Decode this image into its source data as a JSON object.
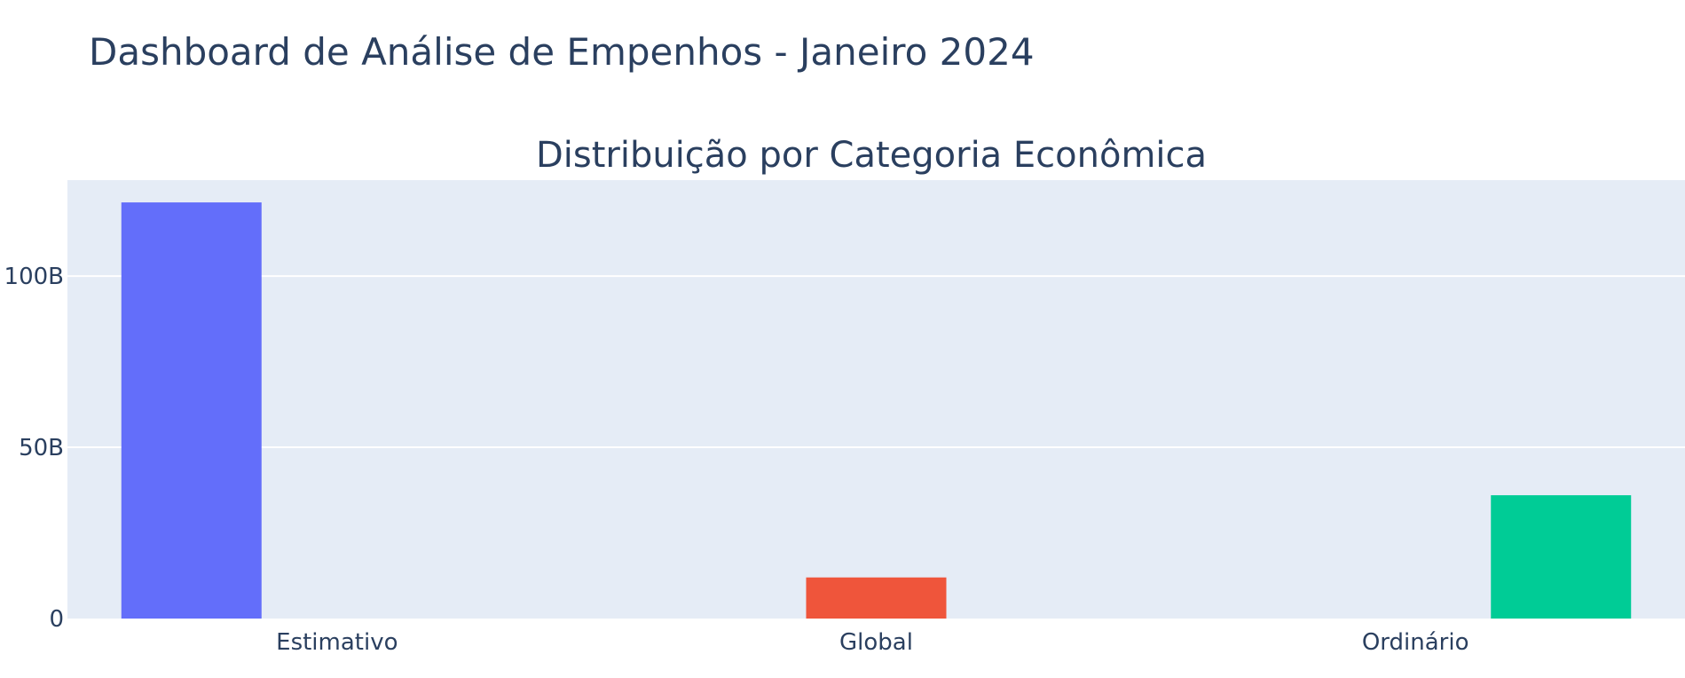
{
  "dashboard": {
    "title": "Dashboard de Análise de Empenhos - Janeiro 2024"
  },
  "chart_data": {
    "type": "bar",
    "title": "Distribuição por Categoria Econômica",
    "xlabel": "",
    "ylabel": "",
    "categories": [
      "Estimativo",
      "Global",
      "Ordinário"
    ],
    "values": [
      121500000000,
      12000000000,
      36000000000
    ],
    "colors": [
      "#636efa",
      "#ef553b",
      "#00cc96"
    ],
    "ylim": [
      0,
      128000000000
    ],
    "yticks": [
      0,
      50000000000,
      100000000000
    ],
    "ytick_labels": [
      "0",
      "50B",
      "100B"
    ],
    "grid": true,
    "legend": "none"
  }
}
